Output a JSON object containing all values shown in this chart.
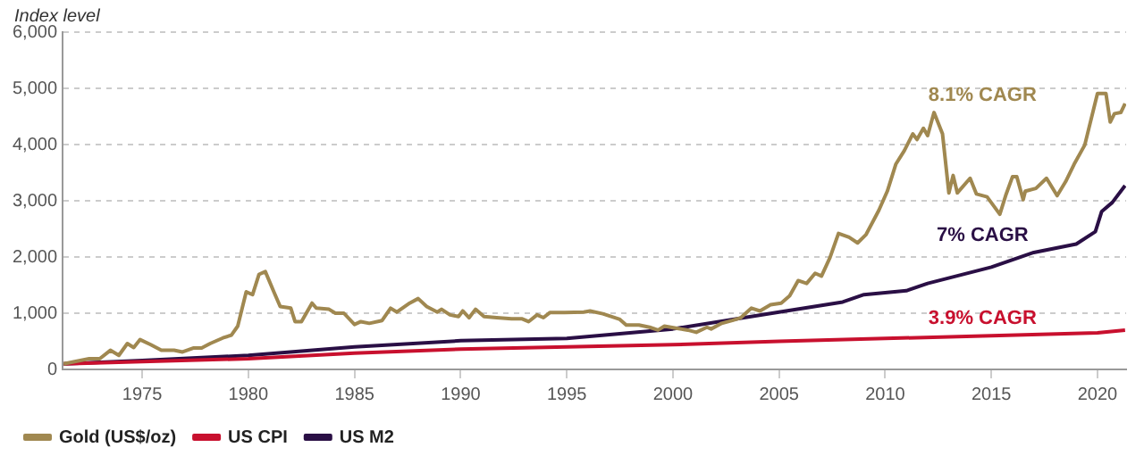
{
  "chart_data": {
    "type": "line",
    "ylabel": "Index level",
    "xlim": [
      1971.25,
      2021.35
    ],
    "xticks": [
      1975,
      1980,
      1985,
      1990,
      1995,
      2000,
      2005,
      2010,
      2015,
      2020
    ],
    "ylim": [
      0,
      6000
    ],
    "yticks": [
      0,
      {
        "value": 1000,
        "label": "1,000"
      },
      {
        "value": 2000,
        "label": "2,000"
      },
      {
        "value": 3000,
        "label": "3,000"
      },
      {
        "value": 4000,
        "label": "4,000"
      },
      {
        "value": 5000,
        "label": "5,000"
      },
      {
        "value": 6000,
        "label": "6,000"
      }
    ],
    "grid": "y",
    "legend": "bottom left",
    "marker": "none",
    "series": [
      {
        "name": "Gold (US$/oz)",
        "color": "#a08850",
        "x": [
          1971.3,
          1972.5,
          1973.0,
          1973.5,
          1973.9,
          1974.3,
          1974.6,
          1974.9,
          1975.4,
          1975.9,
          1976.5,
          1976.9,
          1977.4,
          1977.8,
          1978.2,
          1978.8,
          1979.2,
          1979.5,
          1979.9,
          1980.2,
          1980.5,
          1980.8,
          1981.2,
          1981.5,
          1982.0,
          1982.2,
          1982.5,
          1983.0,
          1983.2,
          1983.8,
          1984.1,
          1984.5,
          1985.0,
          1985.3,
          1985.7,
          1986.3,
          1986.7,
          1987.0,
          1987.6,
          1988.0,
          1988.4,
          1988.9,
          1989.1,
          1989.5,
          1989.9,
          1990.1,
          1990.4,
          1990.7,
          1991.1,
          1991.7,
          1992.4,
          1992.9,
          1993.2,
          1993.6,
          1993.9,
          1994.2,
          1994.9,
          1995.8,
          1996.1,
          1996.7,
          1997.5,
          1997.8,
          1998.4,
          1998.9,
          1999.3,
          1999.6,
          2000.2,
          2000.7,
          2001.1,
          2001.6,
          2001.8,
          2002.3,
          2002.8,
          2003.2,
          2003.7,
          2004.1,
          2004.6,
          2005.1,
          2005.5,
          2005.9,
          2006.3,
          2006.7,
          2007.0,
          2007.4,
          2007.8,
          2008.3,
          2008.7,
          2009.1,
          2009.7,
          2010.1,
          2010.5,
          2010.9,
          2011.3,
          2011.5,
          2011.8,
          2012.0,
          2012.3,
          2012.7,
          2013.0,
          2013.2,
          2013.4,
          2014.0,
          2014.3,
          2014.8,
          2015.4,
          2015.7,
          2016.0,
          2016.2,
          2016.5,
          2016.6,
          2017.1,
          2017.6,
          2018.1,
          2018.5,
          2018.9,
          2019.4,
          2020.0,
          2020.4,
          2020.6,
          2020.8,
          2021.1,
          2021.3
        ],
        "values": [
          100,
          190,
          190,
          340,
          250,
          460,
          390,
          530,
          440,
          340,
          340,
          310,
          380,
          380,
          460,
          560,
          610,
          770,
          1380,
          1330,
          1690,
          1740,
          1380,
          1120,
          1090,
          850,
          850,
          1180,
          1090,
          1070,
          1000,
          1000,
          800,
          850,
          820,
          870,
          1090,
          1020,
          1180,
          1260,
          1120,
          1020,
          1070,
          970,
          940,
          1040,
          920,
          1070,
          940,
          920,
          900,
          900,
          850,
          970,
          920,
          1010,
          1010,
          1020,
          1040,
          990,
          890,
          790,
          790,
          750,
          700,
          770,
          730,
          700,
          660,
          750,
          720,
          820,
          870,
          920,
          1090,
          1040,
          1150,
          1180,
          1310,
          1580,
          1530,
          1710,
          1660,
          1990,
          2420,
          2350,
          2250,
          2400,
          2830,
          3170,
          3650,
          3890,
          4190,
          4090,
          4290,
          4160,
          4570,
          4190,
          3140,
          3450,
          3140,
          3400,
          3120,
          3070,
          2760,
          3120,
          3430,
          3430,
          3020,
          3170,
          3220,
          3400,
          3090,
          3340,
          3650,
          3990,
          4910,
          4910,
          4400,
          4550,
          4570,
          4730
        ]
      },
      {
        "name": "US CPI",
        "color": "#c8102e",
        "x": [
          1971.3,
          1975,
          1980,
          1985,
          1990,
          1995,
          2000,
          2005,
          2010,
          2015,
          2020,
          2021.3
        ],
        "values": [
          100,
          140,
          190,
          290,
          360,
          400,
          440,
          500,
          550,
          600,
          650,
          700
        ]
      },
      {
        "name": "US M2",
        "color": "#2a0f45",
        "x": [
          1971.3,
          1975,
          1980,
          1985,
          1990,
          1995,
          2000,
          2005,
          2008,
          2009,
          2011,
          2012,
          2015,
          2017,
          2019,
          2019.9,
          2020.2,
          2020.7,
          2021.3
        ],
        "values": [
          100,
          160,
          250,
          400,
          510,
          550,
          720,
          1020,
          1200,
          1330,
          1400,
          1530,
          1820,
          2080,
          2230,
          2450,
          2810,
          2970,
          3270
        ]
      }
    ],
    "annotations": [
      "8.1% CAGR",
      "3.9% CAGR",
      "7% CAGR"
    ]
  }
}
